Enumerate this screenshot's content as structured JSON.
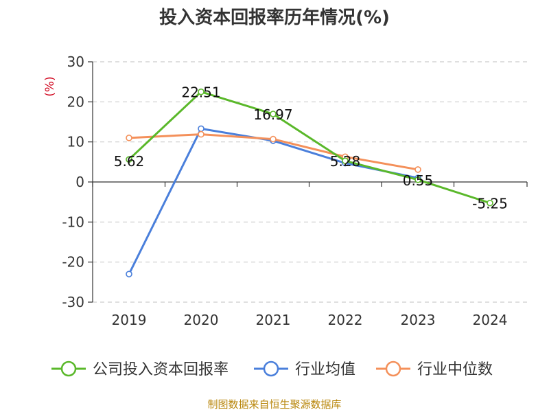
{
  "title": "投入资本回报率历年情况(%)",
  "y_unit_label": "(%)",
  "source": "制图数据来自恒生聚源数据库",
  "colors": {
    "company": "#5ab82a",
    "industry_avg": "#4a7fdb",
    "industry_median": "#f4905a",
    "axis": "#333333",
    "grid": "#cccccc",
    "source": "#b8860b"
  },
  "chart_data": {
    "type": "line",
    "title": "投入资本回报率历年情况(%)",
    "xlabel": "",
    "ylabel": "(%)",
    "ylim": [
      -30,
      30
    ],
    "yticks": [
      -30,
      -20,
      -10,
      0,
      10,
      20,
      30
    ],
    "y_tick_labels": [
      "-30",
      "-20",
      "-10",
      "0",
      "10",
      "20",
      "30"
    ],
    "categories": [
      "2019",
      "2020",
      "2021",
      "2022",
      "2023",
      "2024"
    ],
    "grid": true,
    "legend_position": "bottom",
    "series": [
      {
        "name": "公司投入资本回报率",
        "color": "#5ab82a",
        "values": [
          5.62,
          22.51,
          16.97,
          5.28,
          0.55,
          -5.25
        ],
        "labels": [
          "5.62",
          "22.51",
          "16.97",
          "5.28",
          "0.55",
          "-5.25"
        ]
      },
      {
        "name": "行业均值",
        "color": "#4a7fdb",
        "values": [
          -23.0,
          13.3,
          10.3,
          4.7,
          1.0,
          null
        ]
      },
      {
        "name": "行业中位数",
        "color": "#f4905a",
        "values": [
          11.0,
          11.9,
          10.7,
          6.3,
          3.1,
          null
        ]
      }
    ]
  }
}
